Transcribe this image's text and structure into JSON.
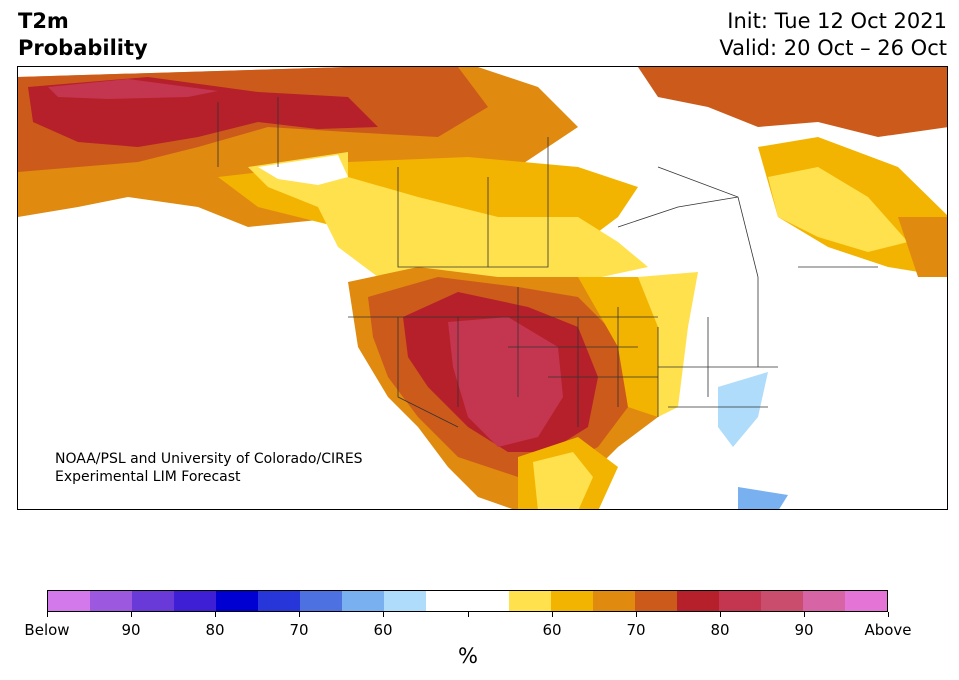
{
  "header": {
    "title_line1": "T2m",
    "title_line2": "Probability",
    "init_text": "Init: Tue 12 Oct 2021",
    "valid_text": "Valid: 20 Oct – 26 Oct"
  },
  "credit": {
    "line1": "NOAA/PSL and University of Colorado/CIRES",
    "line2": "Experimental LIM Forecast"
  },
  "colorbar": {
    "colors": [
      "#d479ec",
      "#9c59e0",
      "#6a3ad8",
      "#3e1fd6",
      "#0000d2",
      "#2636d9",
      "#4d71e0",
      "#79b0ef",
      "#aedcfa",
      "#ffffff",
      "#ffffff",
      "#ffe14d",
      "#f2b400",
      "#e08a10",
      "#cc5a1a",
      "#b5202a",
      "#c43550",
      "#cb4d6e",
      "#d764a4",
      "#e574d7"
    ],
    "tick_labels": [
      "Below",
      "90",
      "80",
      "70",
      "60",
      "",
      "60",
      "70",
      "80",
      "90",
      "Above"
    ],
    "unit_label": "%"
  },
  "map": {
    "category_colors": {
      "above_55": "#ffe14d",
      "above_60": "#f2b400",
      "above_65": "#e08a10",
      "above_70": "#cc5a1a",
      "above_75": "#b5202a",
      "above_80": "#c43550",
      "below_60": "#aedcfa",
      "below_65": "#79b0ef",
      "neutral": "#ffffff",
      "boundary": "#333333"
    }
  }
}
